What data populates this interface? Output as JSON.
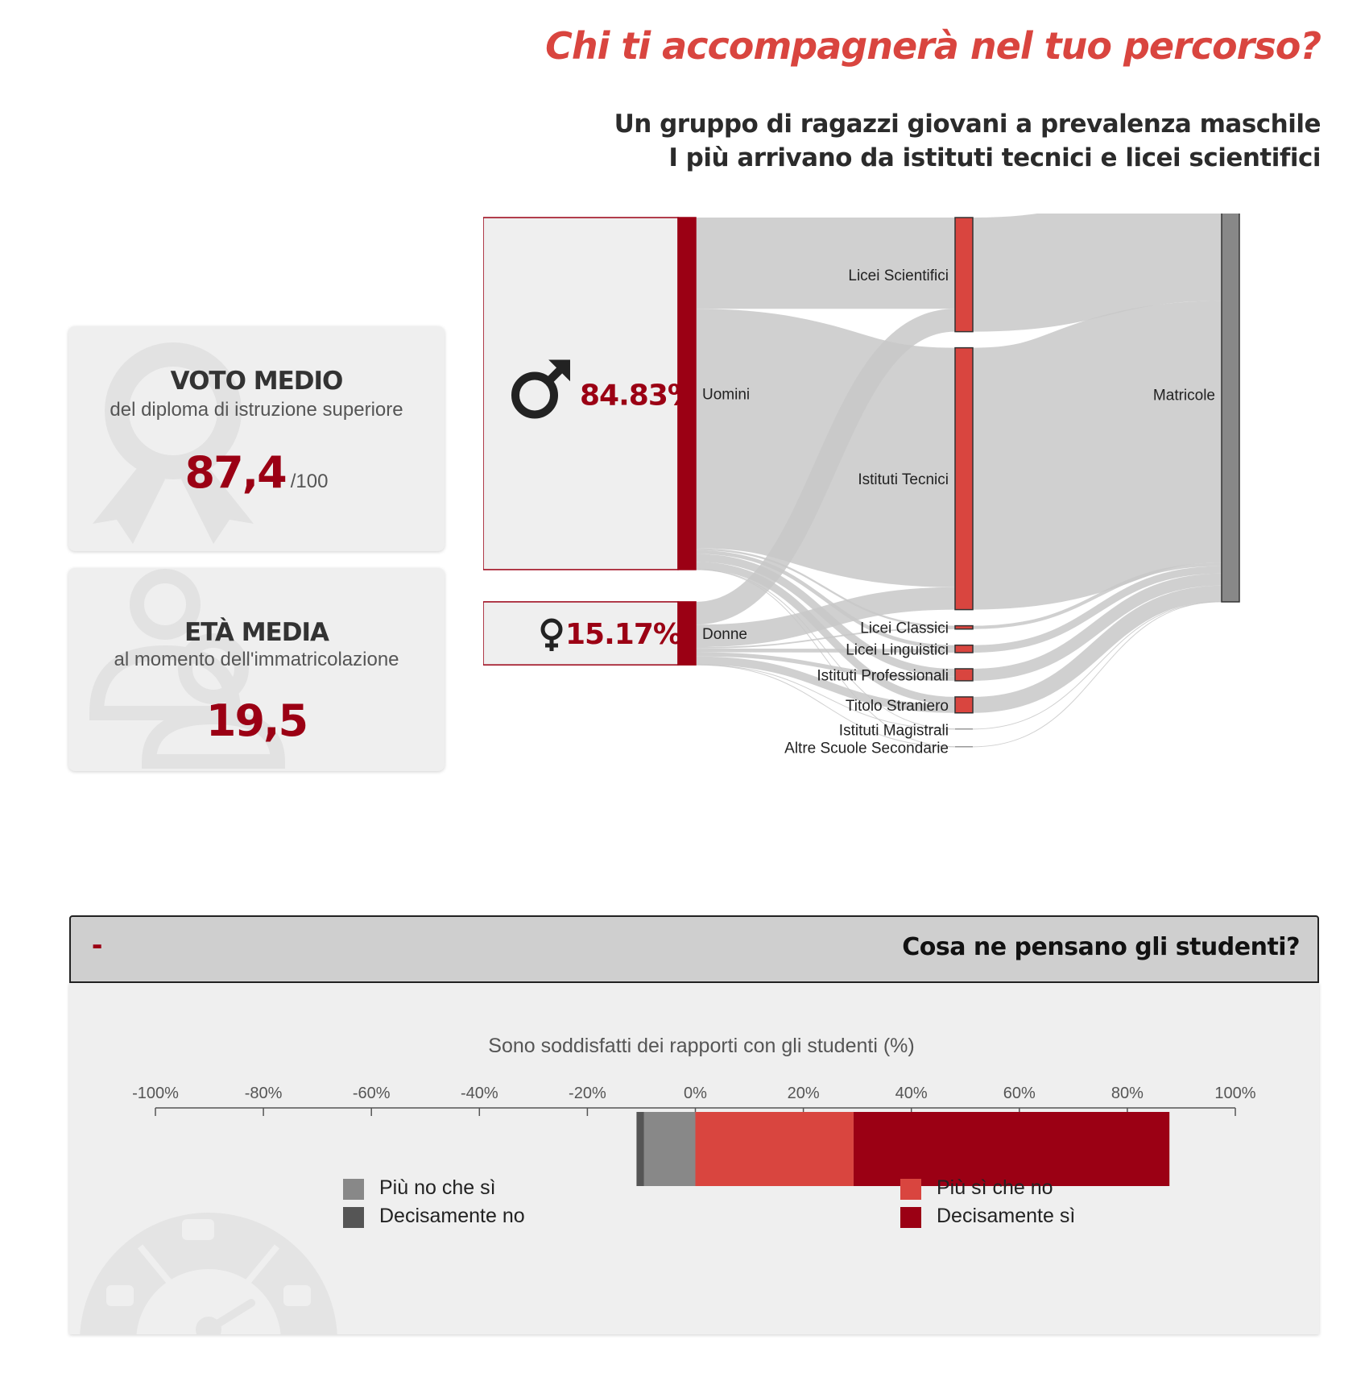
{
  "header": {
    "title": "Chi ti accompagnerà nel tuo percorso?",
    "subtitle_line1": "Un gruppo di ragazzi giovani a prevalenza maschile",
    "subtitle_line2": "I più arrivano da istituti tecnici e licei scientifici"
  },
  "stats": {
    "vote": {
      "title": "VOTO MEDIO",
      "desc": "del diploma di istruzione superiore",
      "value": "87,4",
      "unit": "/100",
      "icon": "rosette-icon"
    },
    "age": {
      "title": "ETÀ MEDIA",
      "desc": "al momento dell'immatricolazione",
      "value": "19,5",
      "icon": "people-icon"
    }
  },
  "colors": {
    "accent": "#d9453f",
    "dark_red": "#9b0014",
    "gray_node": "#888888",
    "dark_gray": "#555555",
    "link": "#cccccc"
  },
  "sankey": {
    "gender_boxes": [
      {
        "id": "Uomini",
        "value": "84.83%",
        "icon": "male-icon"
      },
      {
        "id": "Donne",
        "value": "15.17%",
        "icon": "female-icon"
      }
    ],
    "nodes": [
      {
        "id": "Uomini",
        "column": 0
      },
      {
        "id": "Donne",
        "column": 0
      },
      {
        "id": "Licei Scientifici",
        "column": 1
      },
      {
        "id": "Istituti Tecnici",
        "column": 1
      },
      {
        "id": "Licei Classici",
        "column": 1
      },
      {
        "id": "Licei Linguistici",
        "column": 1
      },
      {
        "id": "Istituti Professionali",
        "column": 1
      },
      {
        "id": "Titolo Straniero",
        "column": 1
      },
      {
        "id": "Istituti Magistrali",
        "column": 1
      },
      {
        "id": "Altre Scuole Secondarie",
        "column": 1
      },
      {
        "id": "Matricole",
        "column": 2
      }
    ],
    "links": [
      {
        "source": "Uomini",
        "target": "Licei Scientifici",
        "value": 22.0
      },
      {
        "source": "Uomini",
        "target": "Istituti Tecnici",
        "value": 57.7
      },
      {
        "source": "Uomini",
        "target": "Licei Classici",
        "value": 0.45
      },
      {
        "source": "Uomini",
        "target": "Licei Linguistici",
        "value": 0.9
      },
      {
        "source": "Uomini",
        "target": "Istituti Professionali",
        "value": 1.9
      },
      {
        "source": "Uomini",
        "target": "Titolo Straniero",
        "value": 1.85
      },
      {
        "source": "Uomini",
        "target": "Istituti Magistrali",
        "value": 0.02
      },
      {
        "source": "Uomini",
        "target": "Altre Scuole Secondarie",
        "value": 0.02
      },
      {
        "source": "Donne",
        "target": "Licei Scientifici",
        "value": 5.5
      },
      {
        "source": "Donne",
        "target": "Istituti Tecnici",
        "value": 5.4
      },
      {
        "source": "Donne",
        "target": "Licei Classici",
        "value": 0.35
      },
      {
        "source": "Donne",
        "target": "Licei Linguistici",
        "value": 0.9
      },
      {
        "source": "Donne",
        "target": "Istituti Professionali",
        "value": 1.0
      },
      {
        "source": "Donne",
        "target": "Titolo Straniero",
        "value": 2.0
      },
      {
        "source": "Donne",
        "target": "Istituti Magistrali",
        "value": 0.02
      },
      {
        "source": "Donne",
        "target": "Altre Scuole Secondarie",
        "value": 0.02
      },
      {
        "source": "Licei Scientifici",
        "target": "Matricole",
        "value": 27.5
      },
      {
        "source": "Istituti Tecnici",
        "target": "Matricole",
        "value": 63.1
      },
      {
        "source": "Licei Classici",
        "target": "Matricole",
        "value": 0.8
      },
      {
        "source": "Licei Linguistici",
        "target": "Matricole",
        "value": 1.8
      },
      {
        "source": "Istituti Professionali",
        "target": "Matricole",
        "value": 2.9
      },
      {
        "source": "Titolo Straniero",
        "target": "Matricole",
        "value": 3.85
      },
      {
        "source": "Istituti Magistrali",
        "target": "Matricole",
        "value": 0.04
      },
      {
        "source": "Altre Scuole Secondarie",
        "target": "Matricole",
        "value": 0.04
      }
    ]
  },
  "section": {
    "toggle": "-",
    "title": "Cosa ne pensano gli studenti?",
    "gauge_icon": "satisfaction-gauge-icon"
  },
  "chart_data": {
    "type": "bar",
    "orientation": "horizontal",
    "stacked": "diverging",
    "title": "Sono soddisfatti dei rapporti con gli studenti (%)",
    "xlim": [
      -100,
      100
    ],
    "ticks": [
      "-100%",
      "-80%",
      "-60%",
      "-40%",
      "-20%",
      "0%",
      "20%",
      "40%",
      "60%",
      "80%",
      "100%"
    ],
    "series": [
      {
        "name": "Decisamente no",
        "value": -1.4,
        "color": "#555555"
      },
      {
        "name": "Più no che sì",
        "value": -9.5,
        "color": "#888888"
      },
      {
        "name": "Più sì che no",
        "value": 29.3,
        "color": "#d9453f"
      },
      {
        "name": "Decisamente sì",
        "value": 58.5,
        "color": "#9b0014"
      }
    ],
    "legend": {
      "left": [
        "Più no che sì",
        "Decisamente no"
      ],
      "right": [
        "Più sì che no",
        "Decisamente sì"
      ]
    }
  }
}
